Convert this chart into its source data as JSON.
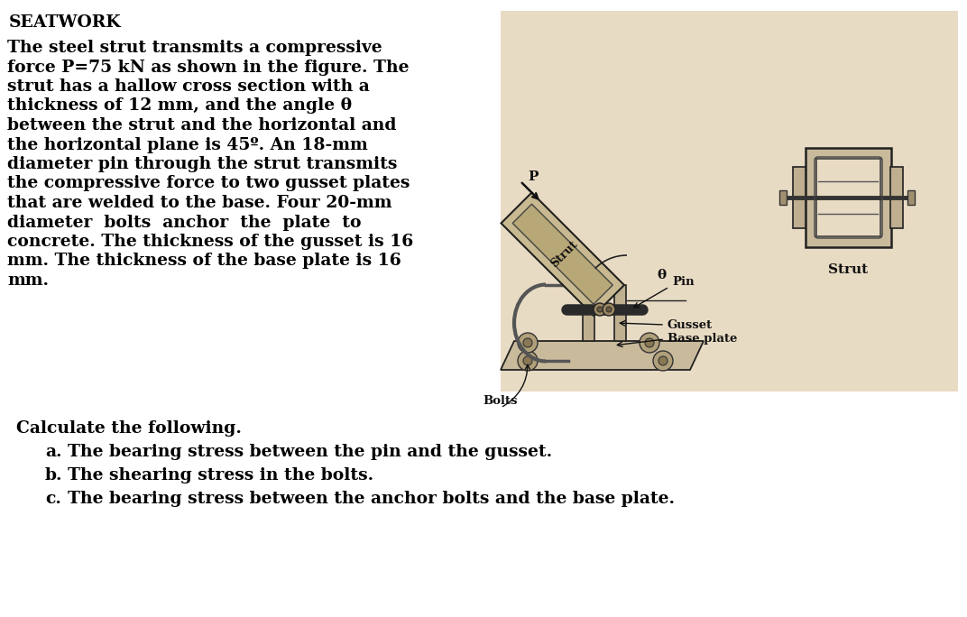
{
  "title": "SEATWORK",
  "background_color": "#ffffff",
  "paragraph_lines": [
    "The steel strut transmits a compressive",
    "force P=75 kN as shown in the figure. The",
    "strut has a hallow cross section with a",
    "thickness of 12 mm, and the angle θ",
    "between the strut and the horizontal and",
    "the horizontal plane is 45º. An 18-mm",
    "diameter pin through the strut transmits",
    "the compressive force to two gusset plates",
    "that are welded to the base. Four 20-mm",
    "diameter  bolts  anchor  the  plate  to",
    "concrete. The thickness of the gusset is 16",
    "mm. The thickness of the base plate is 16",
    "mm."
  ],
  "calculate_header": "Calculate the following.",
  "items": [
    [
      "a.",
      "The bearing stress between the pin and the gusset."
    ],
    [
      "b.",
      "The shearing stress in the bolts."
    ],
    [
      "c.",
      "The bearing stress between the anchor bolts and the base plate."
    ]
  ],
  "image_bg_color": "#e8dbc4",
  "text_color": "#000000",
  "title_fontsize": 13.5,
  "body_fontsize": 13.5,
  "calc_fontsize": 13.5
}
